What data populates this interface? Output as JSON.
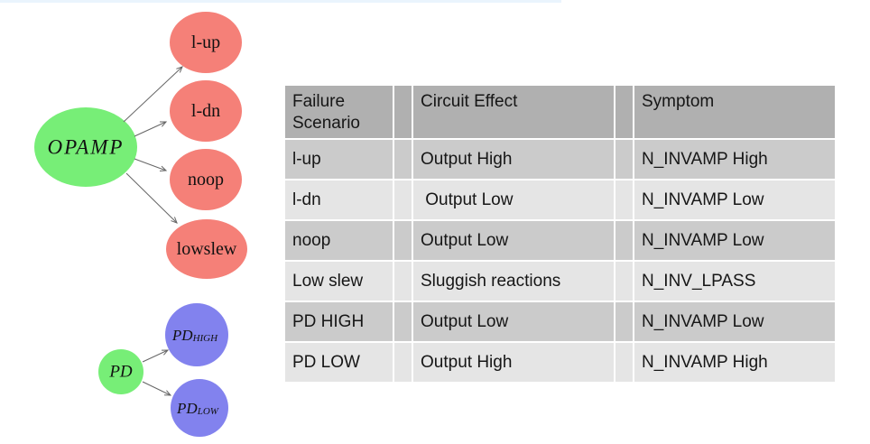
{
  "colors": {
    "green": "#77ee77",
    "red": "#f58078",
    "blue": "#8282ee",
    "arrow": "#666666",
    "header_bg": "#b0b0b0",
    "row_dark": "#cbcbcb",
    "row_light": "#e5e5e5",
    "top_strip": "#eaf4fd",
    "text": "#161616"
  },
  "diagram": {
    "opamp_label": "OPAMP",
    "failure_nodes": [
      {
        "label": "l-up"
      },
      {
        "label": "l-dn"
      },
      {
        "label": "noop"
      },
      {
        "label": "lowslew"
      }
    ],
    "pd_label": "PD",
    "pd_nodes": [
      {
        "base": "PD",
        "sub": "HIGH"
      },
      {
        "base": "PD",
        "sub": "LOW"
      }
    ]
  },
  "table": {
    "headers": {
      "scenario": "Failure Scenario",
      "effect": "Circuit Effect",
      "symptom": "Symptom"
    },
    "rows": [
      {
        "scenario": "l-up",
        "effect": "Output High",
        "symptom": "N_INVAMP High"
      },
      {
        "scenario": "l-dn",
        "effect": " Output Low",
        "symptom": "N_INVAMP Low"
      },
      {
        "scenario": "noop",
        "effect": "Output Low",
        "symptom": "N_INVAMP Low"
      },
      {
        "scenario": "Low slew",
        "effect": "Sluggish reactions",
        "symptom": "N_INV_LPASS"
      },
      {
        "scenario": "PD HIGH",
        "effect": "Output Low",
        "symptom": "N_INVAMP Low"
      },
      {
        "scenario": "PD LOW",
        "effect": "Output High",
        "symptom": "N_INVAMP High"
      }
    ]
  }
}
